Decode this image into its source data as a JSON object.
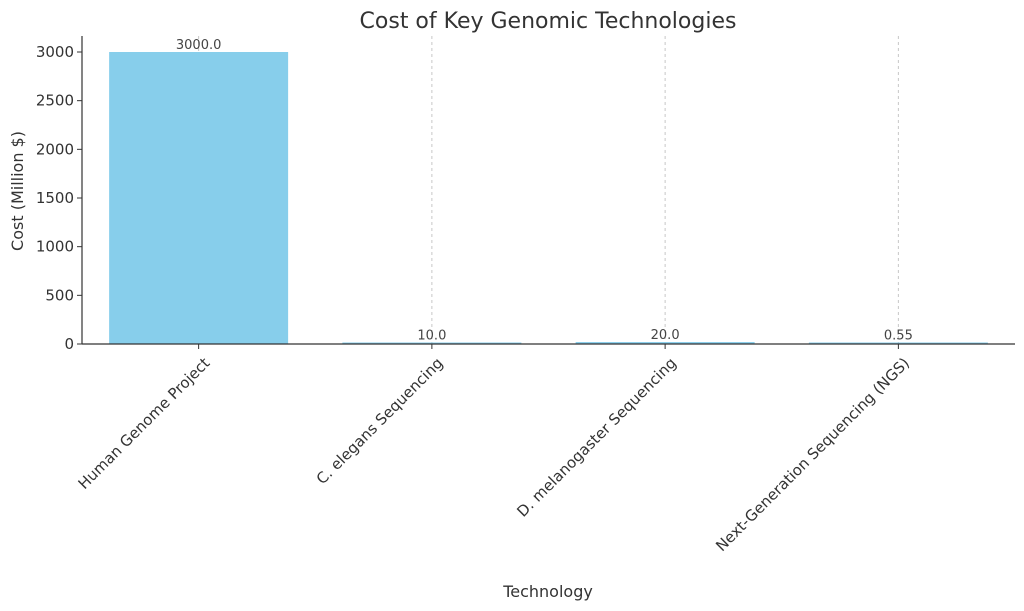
{
  "chart_data": {
    "type": "bar",
    "title": "Cost of Key Genomic Technologies",
    "xlabel": "Technology",
    "ylabel": "Cost (Million $)",
    "categories": [
      "Human Genome Project",
      "C. elegans Sequencing",
      "D. melanogaster Sequencing",
      "Next-Generation Sequencing (NGS)"
    ],
    "values": [
      3000.0,
      10.0,
      20.0,
      0.55
    ],
    "value_labels": [
      "3000.0",
      "10.0",
      "20.0",
      "0.55"
    ],
    "yticks": [
      0,
      500,
      1000,
      1500,
      2000,
      2500,
      3000
    ],
    "ylim": [
      0,
      3000
    ],
    "grid": "x-dashed",
    "bar_color": "#87CEEB"
  }
}
